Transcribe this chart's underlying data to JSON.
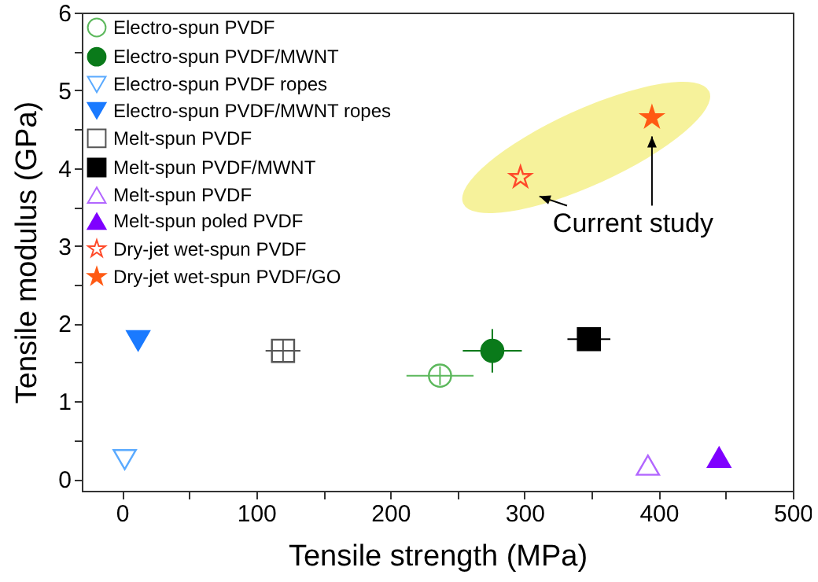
{
  "chart_data": {
    "type": "scatter",
    "xlabel": "Tensile strength (MPa)",
    "ylabel": "Tensile modulus (GPa)",
    "xlim": [
      -30,
      500
    ],
    "ylim": [
      -0.15,
      6
    ],
    "xticks": [
      0,
      {
        "value": 50,
        "label": null
      },
      100,
      {
        "value": 150,
        "label": null
      },
      200,
      {
        "value": 250,
        "label": null
      },
      300,
      {
        "value": 350,
        "label": null
      },
      400,
      {
        "value": 450,
        "label": null
      },
      500
    ],
    "yticks": [
      0,
      {
        "value": 0.5,
        "label": null
      },
      1,
      {
        "value": 1.5,
        "label": null
      },
      2,
      {
        "value": 2.5,
        "label": null
      },
      3,
      {
        "value": 3.5,
        "label": null
      },
      4,
      {
        "value": 4.5,
        "label": null
      },
      5,
      {
        "value": 5.5,
        "label": null
      },
      6
    ],
    "grid": false,
    "legend": "top left",
    "annotations": [
      "Current study"
    ],
    "series": [
      {
        "name": "Electro-spun PVDF",
        "color": "#5cb85c",
        "marker": "circle-open",
        "x": [
          237
        ],
        "values": [
          1.33
        ],
        "errors": [
          0.12
        ],
        "xerrors": [
          25
        ]
      },
      {
        "name": "Electro-spun PVDF/MWNT",
        "color": "#0a7a1a",
        "marker": "circle",
        "x": [
          276
        ],
        "values": [
          1.65
        ],
        "errors": [
          0.28
        ],
        "xerrors": [
          22
        ]
      },
      {
        "name": "Electro-spun PVDF ropes",
        "color": "#5aaaff",
        "marker": "triangle-down-open",
        "x": [
          2
        ],
        "values": [
          0.25
        ]
      },
      {
        "name": "Electro-spun PVDF/MWNT ropes",
        "color": "#1a7aff",
        "marker": "triangle-down",
        "x": [
          12
        ],
        "values": [
          1.78
        ]
      },
      {
        "name": "Melt-spun PVDF",
        "color": "#555555",
        "marker": "square-open",
        "x": [
          120
        ],
        "values": [
          1.65
        ],
        "errors": [
          0.15
        ],
        "xerrors": [
          13
        ]
      },
      {
        "name": "Melt-spun PVDF/MWNT",
        "color": "#000000",
        "marker": "square",
        "x": [
          348
        ],
        "values": [
          1.8
        ],
        "xerrors": [
          16
        ]
      },
      {
        "name": "Melt-spun PVDF",
        "color": "#b266ff",
        "marker": "triangle-open",
        "x": [
          392
        ],
        "values": [
          0.18
        ]
      },
      {
        "name": "Melt-spun poled PVDF",
        "color": "#7f00ff",
        "marker": "triangle",
        "x": [
          445
        ],
        "values": [
          0.28
        ]
      },
      {
        "name": "Dry-jet wet-spun PVDF",
        "color": "#ff4a2a",
        "marker": "star-open",
        "x": [
          297
        ],
        "values": [
          3.88
        ]
      },
      {
        "name": "Dry-jet wet-spun PVDF/GO",
        "color": "#ff5a14",
        "marker": "star",
        "x": [
          395
        ],
        "values": [
          4.65
        ]
      }
    ]
  }
}
